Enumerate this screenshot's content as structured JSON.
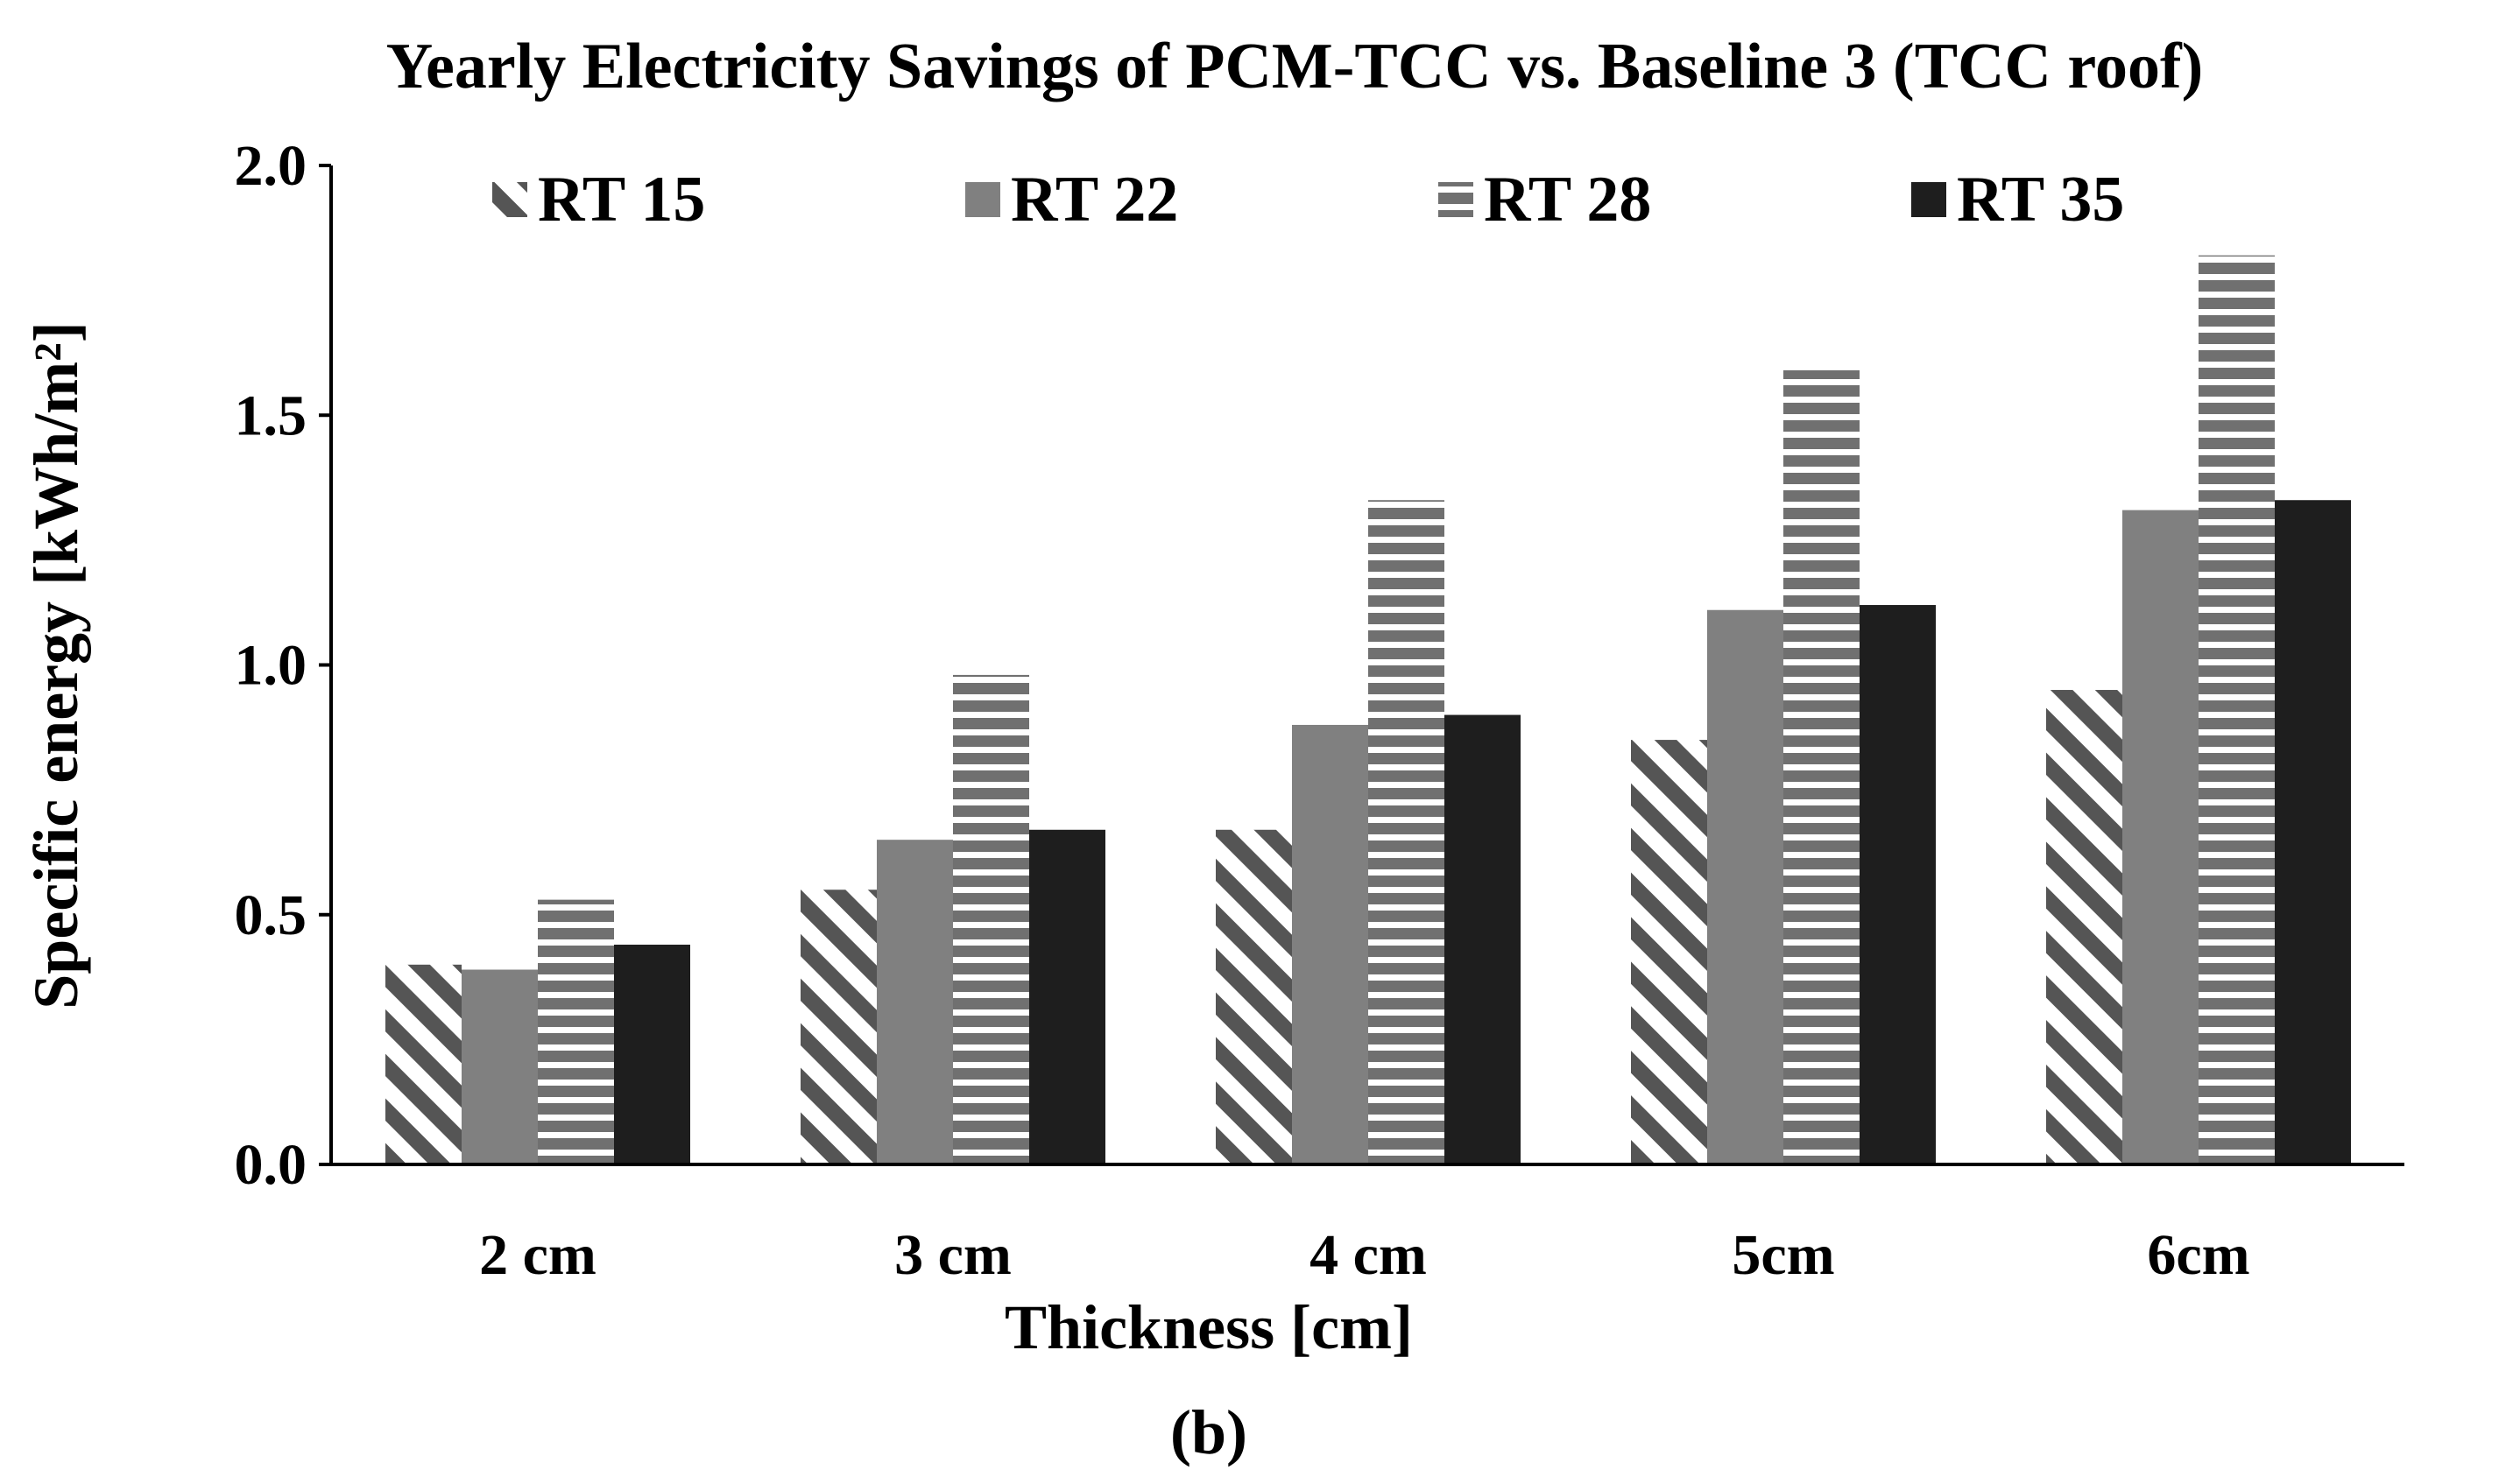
{
  "chart_data": {
    "type": "bar",
    "title": "Yearly Electricity Savings of PCM-TCC vs. Baseline 3 (TCC roof)",
    "xlabel": "Thickness [cm]",
    "ylabel": "Specific energy [kWh/m²]",
    "caption": "(b)",
    "categories": [
      "2 cm",
      "3 cm",
      "4 cm",
      "5cm",
      "6cm"
    ],
    "ylim": [
      0,
      2.0
    ],
    "yticks": [
      "0.0",
      "0.5",
      "1.0",
      "1.5",
      "2.0"
    ],
    "ytick_values": [
      0,
      0.5,
      1.0,
      1.5,
      2.0
    ],
    "legend_position": "top",
    "series": [
      {
        "name": "RT 15",
        "pattern": "diagonal-stripes",
        "color": "#555555",
        "values": [
          0.4,
          0.55,
          0.67,
          0.85,
          0.95
        ]
      },
      {
        "name": "RT 22",
        "pattern": "solid",
        "color": "#808080",
        "values": [
          0.39,
          0.65,
          0.88,
          1.11,
          1.31
        ]
      },
      {
        "name": "RT 28",
        "pattern": "horizontal-stripes",
        "color": "#707070",
        "values": [
          0.53,
          0.98,
          1.33,
          1.59,
          1.82
        ]
      },
      {
        "name": "RT 35",
        "pattern": "solid",
        "color": "#1e1e1e",
        "values": [
          0.44,
          0.67,
          0.9,
          1.12,
          1.33
        ]
      }
    ]
  }
}
